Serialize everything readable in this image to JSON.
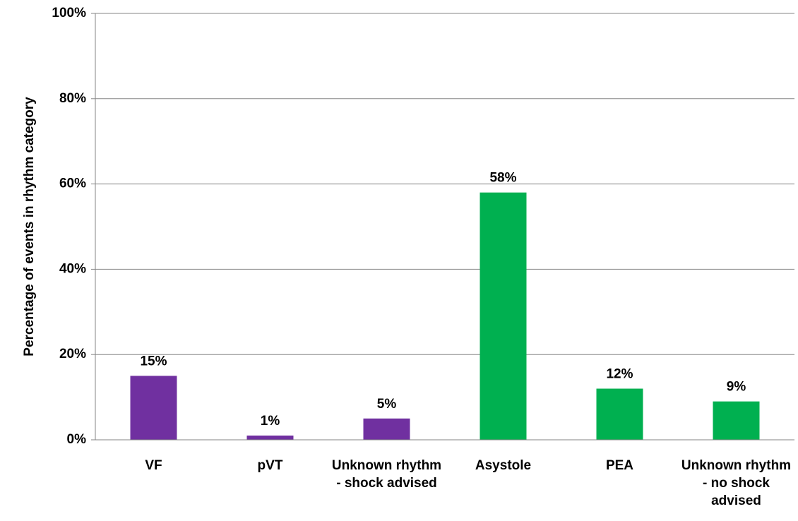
{
  "chart_data": {
    "type": "bar",
    "y_axis_label": "Percentage of events in rhythm category",
    "categories": [
      "VF",
      "pVT",
      "Unknown rhythm - shock advised",
      "Asystole",
      "PEA",
      "Unknown rhythm - no shock advised"
    ],
    "values": [
      15,
      1,
      5,
      58,
      12,
      9
    ],
    "value_labels": [
      "15%",
      "1%",
      "5%",
      "58%",
      "12%",
      "9%"
    ],
    "colors": [
      "#7030a0",
      "#7030a0",
      "#7030a0",
      "#00b050",
      "#00b050",
      "#00b050"
    ],
    "ylim": [
      0,
      100
    ],
    "yticks": [
      {
        "value": 0,
        "label": "0%"
      },
      {
        "value": 20,
        "label": "20%"
      },
      {
        "value": 40,
        "label": "40%"
      },
      {
        "value": 60,
        "label": "60%"
      },
      {
        "value": 80,
        "label": "80%"
      },
      {
        "value": 100,
        "label": "100%"
      }
    ],
    "grid": true
  }
}
